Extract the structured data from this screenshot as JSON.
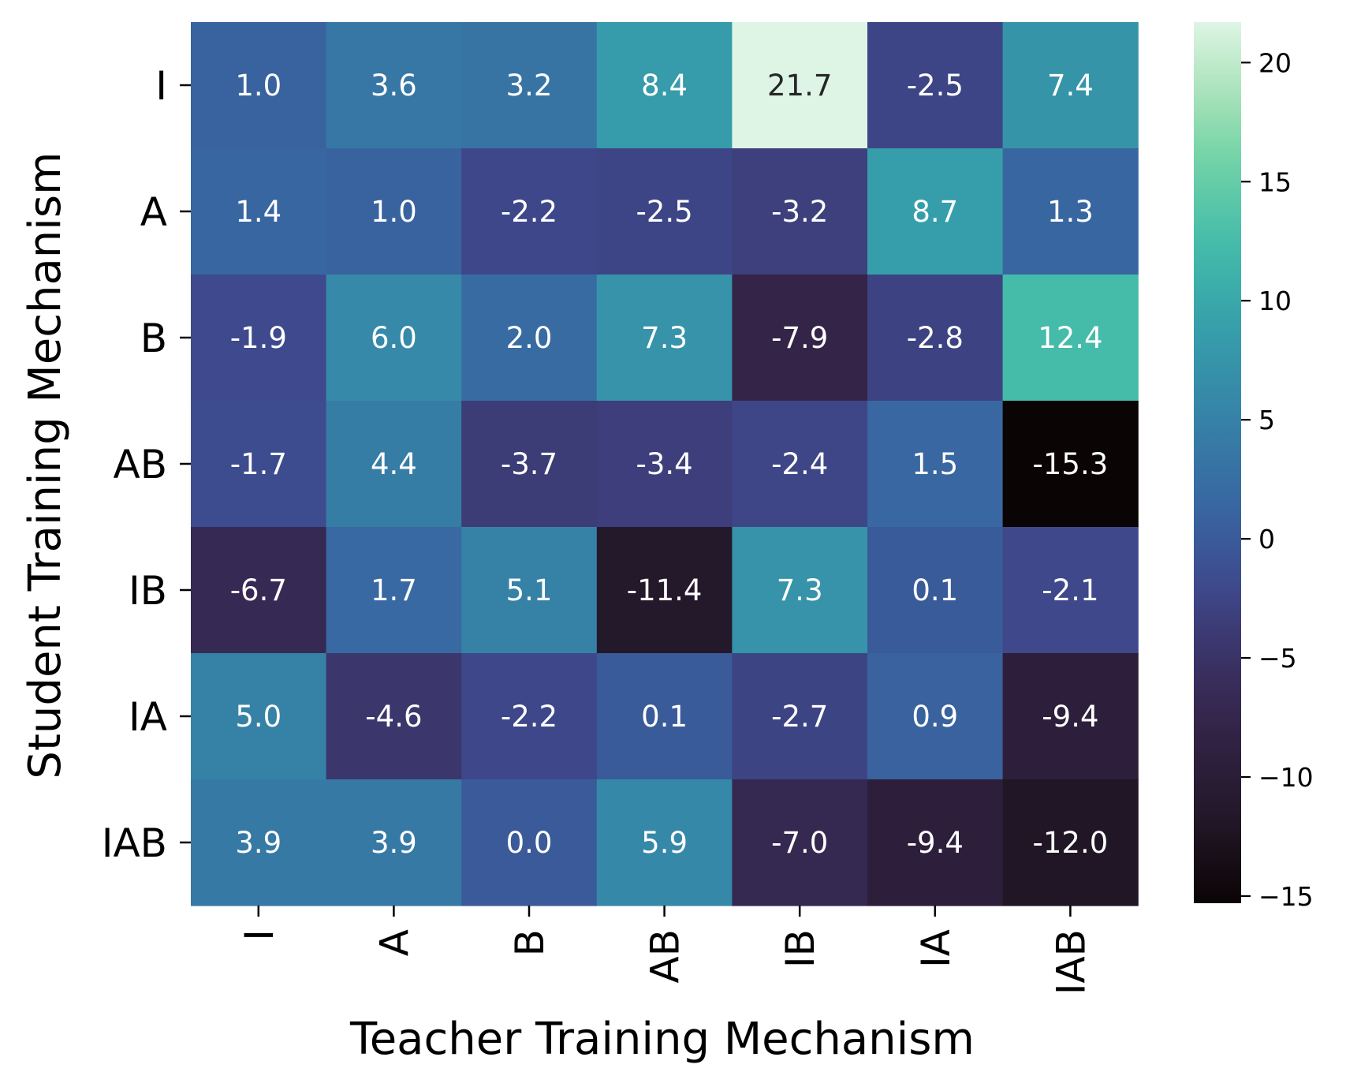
{
  "chart_data": {
    "type": "heatmap",
    "title": "",
    "xlabel": "Teacher Training Mechanism",
    "ylabel": "Student Training Mechanism",
    "x_categories": [
      "I",
      "A",
      "B",
      "AB",
      "IB",
      "IA",
      "IAB"
    ],
    "y_categories": [
      "I",
      "A",
      "B",
      "AB",
      "IB",
      "IA",
      "IAB"
    ],
    "values": [
      [
        1.0,
        3.6,
        3.2,
        8.4,
        21.7,
        -2.5,
        7.4
      ],
      [
        1.4,
        1.0,
        -2.2,
        -2.5,
        -3.2,
        8.7,
        1.3
      ],
      [
        -1.9,
        6.0,
        2.0,
        7.3,
        -7.9,
        -2.8,
        12.4
      ],
      [
        -1.7,
        4.4,
        -3.7,
        -3.4,
        -2.4,
        1.5,
        -15.3
      ],
      [
        -6.7,
        1.7,
        5.1,
        -11.4,
        7.3,
        0.1,
        -2.1
      ],
      [
        5.0,
        -4.6,
        -2.2,
        0.1,
        -2.7,
        0.9,
        -9.4
      ],
      [
        3.9,
        3.9,
        0.0,
        5.9,
        -7.0,
        -9.4,
        -12.0
      ]
    ],
    "value_labels": [
      [
        "1.0",
        "3.6",
        "3.2",
        "8.4",
        "21.7",
        "-2.5",
        "7.4"
      ],
      [
        "1.4",
        "1.0",
        "-2.2",
        "-2.5",
        "-3.2",
        "8.7",
        "1.3"
      ],
      [
        "-1.9",
        "6.0",
        "2.0",
        "7.3",
        "-7.9",
        "-2.8",
        "12.4"
      ],
      [
        "-1.7",
        "4.4",
        "-3.7",
        "-3.4",
        "-2.4",
        "1.5",
        "-15.3"
      ],
      [
        "-6.7",
        "1.7",
        "5.1",
        "-11.4",
        "7.3",
        "0.1",
        "-2.1"
      ],
      [
        "5.0",
        "-4.6",
        "-2.2",
        "0.1",
        "-2.7",
        "0.9",
        "-9.4"
      ],
      [
        "3.9",
        "3.9",
        "0.0",
        "5.9",
        "-7.0",
        "-9.4",
        "-12.0"
      ]
    ],
    "colormap": "mako",
    "color_range": [
      -15.3,
      21.7
    ],
    "colorbar": {
      "ticks": [
        -15,
        -10,
        -5,
        0,
        5,
        10,
        15,
        20
      ],
      "tick_labels": [
        "−15",
        "−10",
        "−5",
        "0",
        "5",
        "10",
        "15",
        "20"
      ]
    },
    "legend": "right",
    "grid": false
  }
}
